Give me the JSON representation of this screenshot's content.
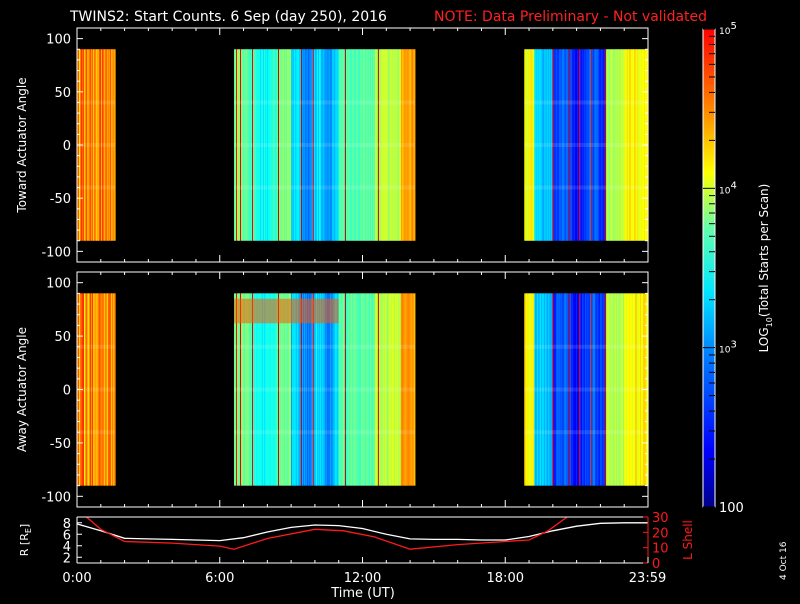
{
  "header": {
    "title": "TWINS2: Start Counts.  6 Sep (day 250), 2016",
    "note": "NOTE: Data Preliminary - Not validated"
  },
  "footer_stamp": "4 Oct 16",
  "colors": {
    "background": "#000000",
    "text": "#ffffff",
    "note": "#ff2020",
    "lshell": "#ff1a1a",
    "range": "#ffffff"
  },
  "colorbar": {
    "label": "LOG10(Total Starts per Scan)",
    "label_main": "LOG",
    "label_sub": "10",
    "label_rest": "(Total Starts per Scan)",
    "scale": "log",
    "range": [
      100,
      100000
    ],
    "ticks": [
      {
        "value": 100000,
        "base": "10",
        "exp": "5"
      },
      {
        "value": 10000,
        "base": "10",
        "exp": "4"
      },
      {
        "value": 1000,
        "base": "10",
        "exp": "3"
      },
      {
        "value": 100,
        "base": "100",
        "exp": ""
      }
    ]
  },
  "chart_data": [
    {
      "type": "heatmap",
      "ylabel": "Toward Actuator Angle",
      "xlim": [
        0,
        24
      ],
      "ylim": [
        -110,
        110
      ],
      "yticks": [
        100,
        50,
        0,
        -50,
        -100
      ],
      "data_extent_y": [
        -90,
        90
      ],
      "segments": [
        {
          "t0": 0.0,
          "t1": 1.6
        },
        {
          "t0": 6.6,
          "t1": 14.2
        },
        {
          "t0": 18.8,
          "t1": 24.0
        }
      ]
    },
    {
      "type": "heatmap",
      "ylabel": "Away Actuator Angle",
      "xlim": [
        0,
        24
      ],
      "ylim": [
        -110,
        110
      ],
      "yticks": [
        100,
        50,
        0,
        -50,
        -100
      ],
      "data_extent_y": [
        -90,
        90
      ],
      "segments": [
        {
          "t0": 0.0,
          "t1": 1.6
        },
        {
          "t0": 6.6,
          "t1": 14.2
        },
        {
          "t0": 18.8,
          "t1": 24.0
        }
      ]
    },
    {
      "type": "line",
      "ylabel_left": "R [RE]",
      "ylabel_left_main": "R [R",
      "ylabel_left_sub": "E",
      "ylabel_left_end": "]",
      "ylabel_right": "L Shell",
      "xlabel": "Time (UT)",
      "xlim": [
        0,
        24
      ],
      "x_tick_labels": [
        {
          "t": 0,
          "label": "0:00"
        },
        {
          "t": 6,
          "label": "6:00"
        },
        {
          "t": 12,
          "label": "12:00"
        },
        {
          "t": 18,
          "label": "18:00"
        },
        {
          "t": 23.98,
          "label": "23:59"
        }
      ],
      "ylim_left": [
        1,
        9
      ],
      "yticks_left": [
        2,
        4,
        6,
        8
      ],
      "ylim_right": [
        0,
        30
      ],
      "yticks_right": [
        0,
        10,
        20,
        30
      ],
      "series": [
        {
          "name": "R",
          "axis": "left",
          "x": [
            0,
            1,
            2,
            3,
            4,
            5,
            6,
            7,
            8,
            9,
            10,
            11,
            12,
            13,
            14,
            15,
            16,
            17,
            18,
            19,
            20,
            21,
            22,
            23,
            24
          ],
          "y": [
            7.8,
            6.6,
            5.3,
            5.2,
            5.1,
            5.0,
            4.9,
            5.4,
            6.4,
            7.2,
            7.6,
            7.5,
            7.0,
            6.0,
            5.2,
            5.1,
            5.1,
            5.0,
            5.0,
            5.6,
            6.6,
            7.4,
            7.9,
            8.0,
            8.0
          ]
        },
        {
          "name": "L Shell",
          "axis": "right",
          "x": [
            0.4,
            1.0,
            2.0,
            4.0,
            6.0,
            6.6,
            8.0,
            10.0,
            11.2,
            12.5,
            14.0,
            16.0,
            18.0,
            19.0,
            19.8,
            20.6
          ],
          "y": [
            30,
            22,
            14,
            13,
            11,
            9,
            16,
            22,
            21,
            17,
            9,
            12,
            14,
            15,
            21,
            30
          ]
        }
      ]
    }
  ]
}
